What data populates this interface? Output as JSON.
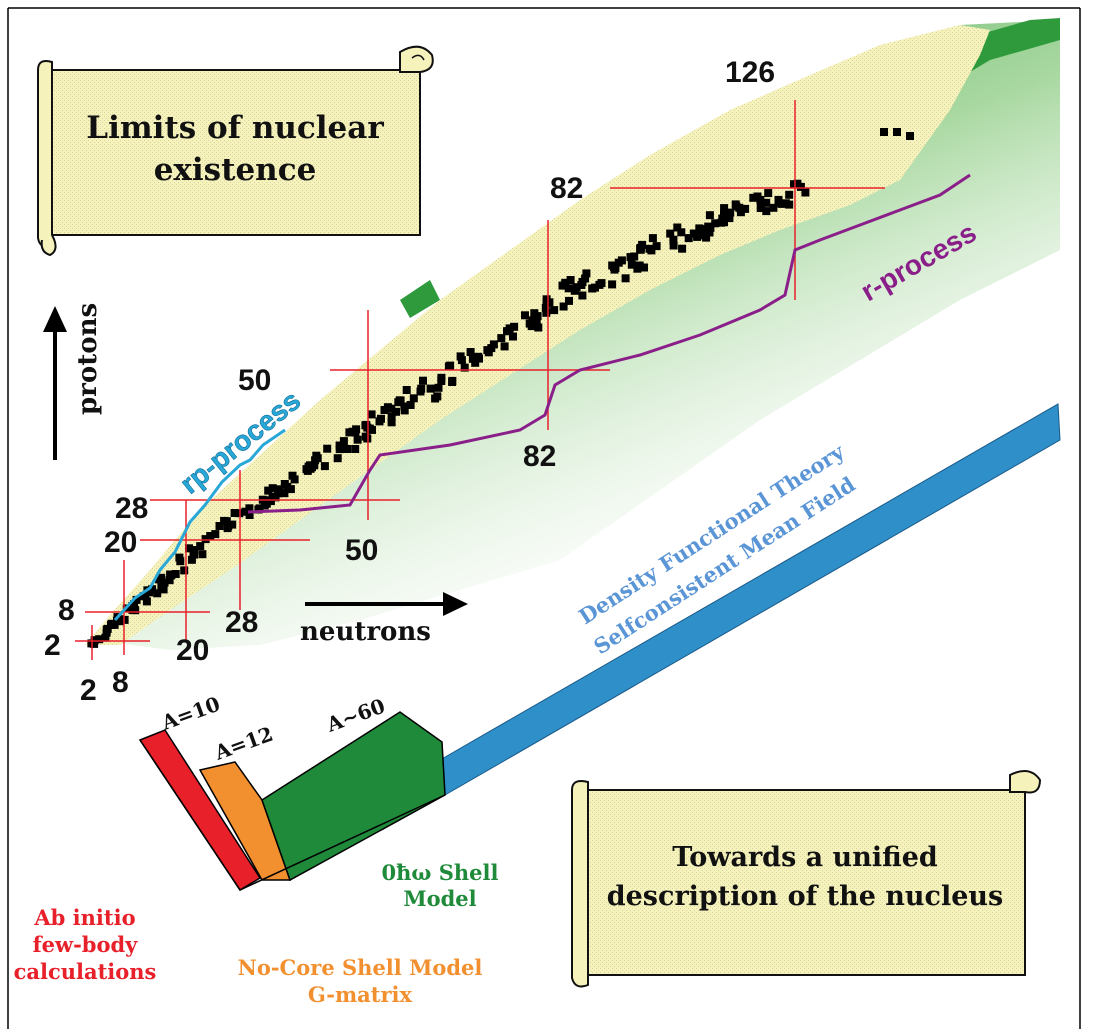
{
  "scroll_top": {
    "line1": "Limits of nuclear",
    "line2": "existence"
  },
  "scroll_bottom": {
    "line1": "Towards a unified",
    "line2": "description of the nucleus"
  },
  "axes": {
    "protons": "protons",
    "neutrons": "neutrons"
  },
  "magic_numbers": {
    "proton": [
      "2",
      "8",
      "20",
      "28",
      "50",
      "82",
      "126"
    ],
    "neutron": [
      "2",
      "8",
      "20",
      "28",
      "50",
      "82"
    ]
  },
  "processes": {
    "rp": "rp-process",
    "r": "r-process"
  },
  "dft": {
    "line1": "Density Functional Theory",
    "line2": "Selfconsistent Mean Field"
  },
  "mass_labels": {
    "a10": "A=10",
    "a12": "A=12",
    "a60": "A~60"
  },
  "methods": {
    "ab_initio": [
      "Ab initio",
      "few-body",
      "calculations"
    ],
    "no_core": [
      "No-Core Shell Model",
      "G-matrix"
    ],
    "shell_model": [
      "0ħω Shell",
      "Model"
    ]
  },
  "colors": {
    "scroll_fill": "#f7f3b8",
    "stable_band": "#f7f3b8",
    "drip_green": "#3a9a3a",
    "rp_line": "#29a8d8",
    "r_line": "#8a1f8a",
    "dft_band": "#2f8fc8",
    "ab_initio": "#e8202a",
    "no_core": "#f29030",
    "shell_model": "#1f8a3a",
    "magic_lines": "#e8202a"
  }
}
